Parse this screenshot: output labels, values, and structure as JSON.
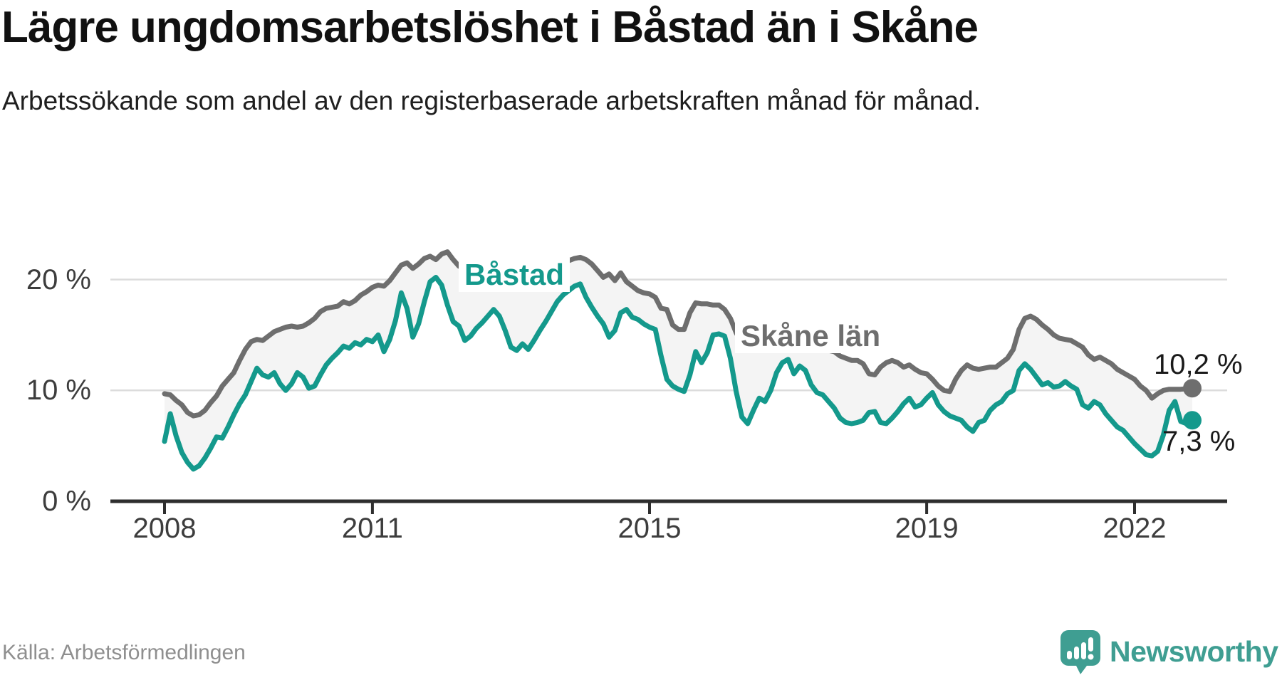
{
  "header": {
    "title": "Lägre ungdomsarbetslöshet i Båstad än i Skåne",
    "subtitle": "Arbetssökande som andel av den registerbaserade arbetskraften månad för månad."
  },
  "chart_data": {
    "type": "line",
    "title": "Lägre ungdomsarbetslöshet i Båstad än i Skåne",
    "x_frequency": "monthly",
    "x_start": "2008-01",
    "x_end": "2022-11",
    "ylim": [
      0,
      23
    ],
    "grid": "horizontal",
    "legend_position": "inline-labels",
    "y_axis": {
      "tick_labels": [
        "0 %",
        "10 %",
        "20 %"
      ],
      "tick_values": [
        0,
        10,
        20
      ]
    },
    "x_axis": {
      "tick_labels": [
        "2008",
        "2011",
        "2015",
        "2019",
        "2022"
      ],
      "tick_years": [
        2008,
        2011,
        2015,
        2019,
        2022
      ]
    },
    "series": [
      {
        "name": "Skåne län",
        "label": "Skåne län",
        "end_label": "10,2 %",
        "end_value": 10.2,
        "color": "#6E6E6E",
        "values": [
          9.7,
          9.6,
          9.1,
          8.7,
          8.0,
          7.7,
          7.8,
          8.2,
          8.9,
          9.5,
          10.4,
          11.0,
          11.6,
          12.7,
          13.7,
          14.4,
          14.6,
          14.5,
          14.9,
          15.3,
          15.5,
          15.7,
          15.8,
          15.7,
          15.8,
          16.1,
          16.5,
          17.1,
          17.4,
          17.5,
          17.6,
          18.0,
          17.8,
          18.1,
          18.6,
          18.9,
          19.3,
          19.5,
          19.4,
          19.9,
          20.6,
          21.3,
          21.5,
          21.0,
          21.4,
          21.9,
          22.1,
          21.8,
          22.3,
          22.5,
          21.8,
          21.2,
          21.4,
          21.0,
          21.4,
          21.6,
          21.2,
          21.4,
          21.3,
          21.2,
          21.6,
          21.4,
          21.0,
          20.6,
          20.3,
          21.0,
          21.4,
          21.6,
          21.5,
          21.5,
          21.7,
          21.9,
          22.0,
          21.8,
          21.4,
          20.8,
          20.2,
          20.5,
          19.9,
          20.6,
          19.8,
          19.4,
          19.0,
          18.8,
          18.7,
          18.4,
          17.4,
          17.3,
          15.9,
          15.5,
          15.5,
          17.0,
          17.9,
          17.8,
          17.8,
          17.7,
          17.7,
          17.3,
          16.5,
          15.2,
          14.2,
          13.9,
          15.2,
          15.5,
          15.0,
          14.9,
          15.0,
          15.1,
          15.0,
          14.8,
          14.6,
          14.7,
          14.4,
          14.2,
          13.9,
          13.6,
          13.5,
          13.1,
          12.9,
          12.7,
          12.7,
          12.4,
          11.5,
          11.4,
          12.1,
          12.5,
          12.7,
          12.5,
          12.1,
          12.3,
          11.9,
          11.6,
          11.5,
          11.0,
          10.4,
          10.0,
          9.9,
          11.0,
          11.8,
          12.3,
          12.0,
          11.9,
          12.0,
          12.1,
          12.1,
          12.5,
          12.9,
          13.7,
          15.5,
          16.5,
          16.7,
          16.4,
          15.9,
          15.5,
          15.0,
          14.7,
          14.6,
          14.5,
          14.2,
          13.9,
          13.2,
          12.8,
          13.0,
          12.7,
          12.4,
          11.9,
          11.6,
          11.3,
          11.0,
          10.4,
          10.0,
          9.3,
          9.7,
          10.0,
          10.1,
          10.1,
          10.1,
          10.15,
          10.2
        ]
      },
      {
        "name": "Båstad",
        "label": "Båstad",
        "end_label": "7,3 %",
        "end_value": 7.3,
        "color": "#14998C",
        "values": [
          5.4,
          7.9,
          5.9,
          4.4,
          3.5,
          2.9,
          3.2,
          3.9,
          4.8,
          5.8,
          5.7,
          6.7,
          7.8,
          8.8,
          9.6,
          10.8,
          12.0,
          11.4,
          11.2,
          11.6,
          10.6,
          10.0,
          10.6,
          11.6,
          11.2,
          10.2,
          10.4,
          11.4,
          12.3,
          12.9,
          13.4,
          14.0,
          13.8,
          14.3,
          14.1,
          14.6,
          14.4,
          15.0,
          13.5,
          14.6,
          16.3,
          18.8,
          17.4,
          14.8,
          16.0,
          18.0,
          19.8,
          20.2,
          19.5,
          17.7,
          16.2,
          15.8,
          14.5,
          14.9,
          15.6,
          16.1,
          16.7,
          17.3,
          16.7,
          15.4,
          13.9,
          13.6,
          14.2,
          13.7,
          14.5,
          15.4,
          16.2,
          17.1,
          18.0,
          18.6,
          19.0,
          19.4,
          19.6,
          18.4,
          17.5,
          16.7,
          16.0,
          14.8,
          15.4,
          17.0,
          17.3,
          16.6,
          16.4,
          16.0,
          15.7,
          15.5,
          13.1,
          11.0,
          10.4,
          10.1,
          9.9,
          11.4,
          13.5,
          12.5,
          13.4,
          15.0,
          15.1,
          14.9,
          12.9,
          9.9,
          7.6,
          7.0,
          8.2,
          9.3,
          9.0,
          10.0,
          11.6,
          12.5,
          12.8,
          11.5,
          12.2,
          11.8,
          10.5,
          9.8,
          9.6,
          9.0,
          8.4,
          7.5,
          7.1,
          7.0,
          7.1,
          7.3,
          8.0,
          8.1,
          7.1,
          7.0,
          7.5,
          8.1,
          8.8,
          9.3,
          8.5,
          8.7,
          9.3,
          9.8,
          8.7,
          8.1,
          7.7,
          7.5,
          7.3,
          6.7,
          6.3,
          7.1,
          7.3,
          8.2,
          8.7,
          9.0,
          9.7,
          10.0,
          11.8,
          12.4,
          11.9,
          11.2,
          10.5,
          10.7,
          10.3,
          10.4,
          10.8,
          10.4,
          10.1,
          8.7,
          8.4,
          9.0,
          8.7,
          7.9,
          7.3,
          6.7,
          6.4,
          5.8,
          5.2,
          4.7,
          4.2,
          4.1,
          4.5,
          6.0,
          8.2,
          9.0,
          7.2,
          7.0,
          7.3
        ]
      }
    ],
    "colors": {
      "fill_between": "#F4F4F4",
      "grid": "#DCDCDC",
      "axis": "#2E2E2E",
      "axis_text": "#3D3D3D",
      "annotation_text": "#1A1A1A"
    }
  },
  "footer": {
    "source": "Källa: Arbetsförmedlingen"
  },
  "logo": {
    "text": "Newsworthy",
    "color": "#3F9E92",
    "icon": "chart-speech-bubble-icon"
  }
}
